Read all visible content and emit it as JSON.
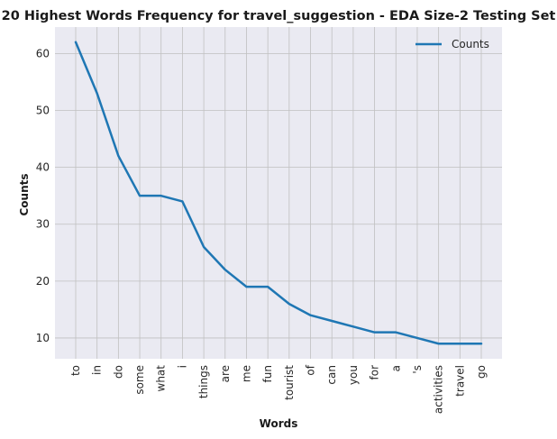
{
  "chart_data": {
    "type": "line",
    "title": "20 Highest Words Frequency for travel_suggestion - EDA Size-2 Testing Set",
    "xlabel": "Words",
    "ylabel": "Counts",
    "categories": [
      "to",
      "in",
      "do",
      "some",
      "what",
      "i",
      "things",
      "are",
      "me",
      "fun",
      "tourist",
      "of",
      "can",
      "you",
      "for",
      "a",
      "'s",
      "activities",
      "travel",
      "go"
    ],
    "series": [
      {
        "name": "Counts",
        "values": [
          62,
          53,
          42,
          35,
          35,
          34,
          26,
          22,
          19,
          19,
          16,
          14,
          13,
          12,
          11,
          11,
          10,
          9,
          9,
          9
        ],
        "color": "#1f77b4"
      }
    ],
    "ylim": [
      6.35,
      64.65
    ],
    "yticks": [
      10,
      20,
      30,
      40,
      50,
      60
    ],
    "grid": true,
    "legend_position": "top-right",
    "background_color": "#eaeaf2",
    "grid_color": "#c0c0c0"
  }
}
